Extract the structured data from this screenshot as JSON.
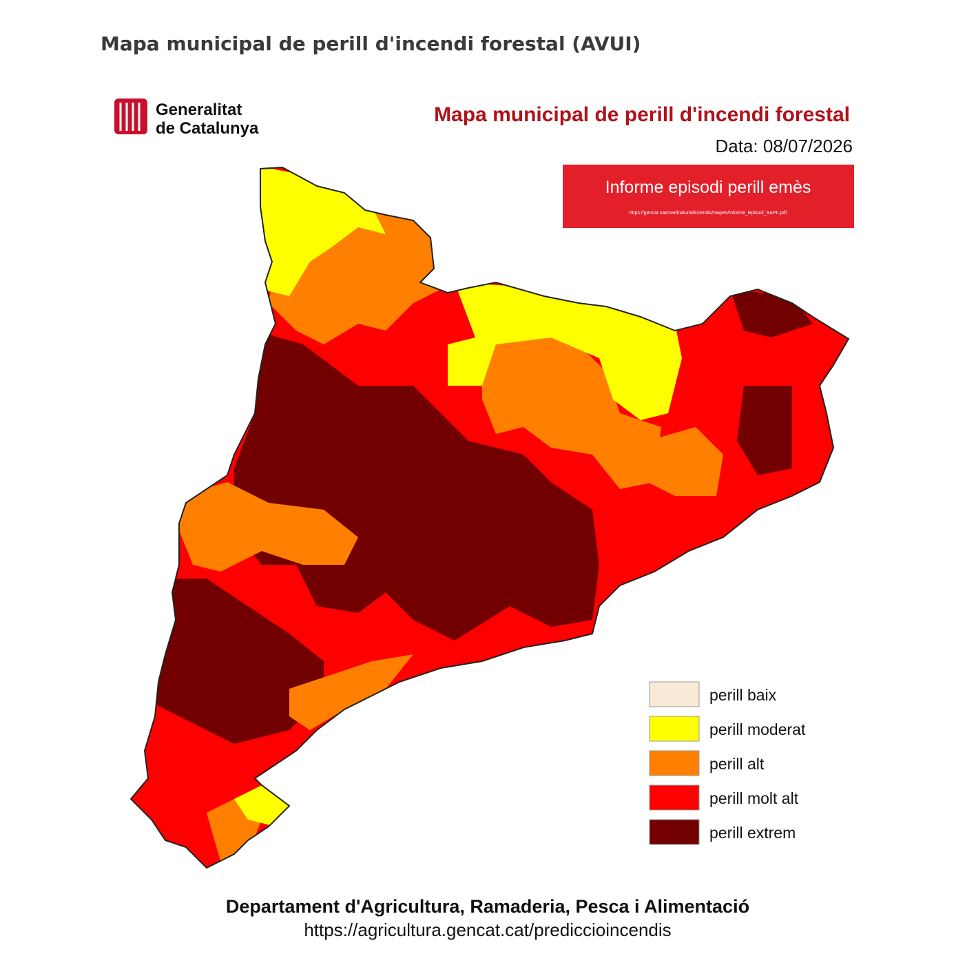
{
  "header": {
    "title": "Mapa municipal de perill d'incendi forestal (AVUI)"
  },
  "logo": {
    "line1": "Generalitat",
    "line2": "de Catalunya"
  },
  "map": {
    "title": "Mapa municipal de perill d'incendi forestal",
    "date": "Data: 08/07/2026",
    "banner": {
      "text": "Informe episodi perill emès",
      "url": "https://gencat.cat/medinatural/incendis/mapes/Informe_Episodi_SAPII.pdf"
    },
    "legend": [
      {
        "label": "perill baix",
        "color": "#f8ead6"
      },
      {
        "label": "perill moderat",
        "color": "#ffff00"
      },
      {
        "label": "perill alt",
        "color": "#ff8000"
      },
      {
        "label": "perill molt alt",
        "color": "#ff0000"
      },
      {
        "label": "perill extrem",
        "color": "#730000"
      }
    ]
  },
  "footer": {
    "department": "Departament d'Agricultura, Ramaderia, Pesca i Alimentació",
    "url": "https://agricultura.gencat.cat/prediccioincendis"
  }
}
